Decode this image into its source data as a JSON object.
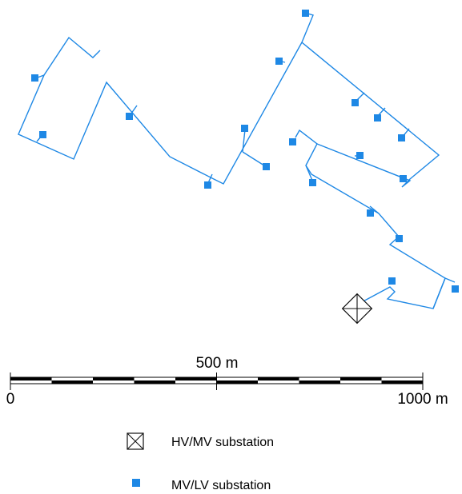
{
  "colors": {
    "feeder": "#1e88e5",
    "mvlv_substation": "#1e88e5",
    "hvmv_substation": "#111111"
  },
  "scale_bar": {
    "label_start": "0",
    "label_mid": "500 m",
    "label_end": "1000 m",
    "segments": 10
  },
  "legend": {
    "hvmv_label": "HV/MV substation",
    "mvlv_label": "MV/LV substation"
  }
}
